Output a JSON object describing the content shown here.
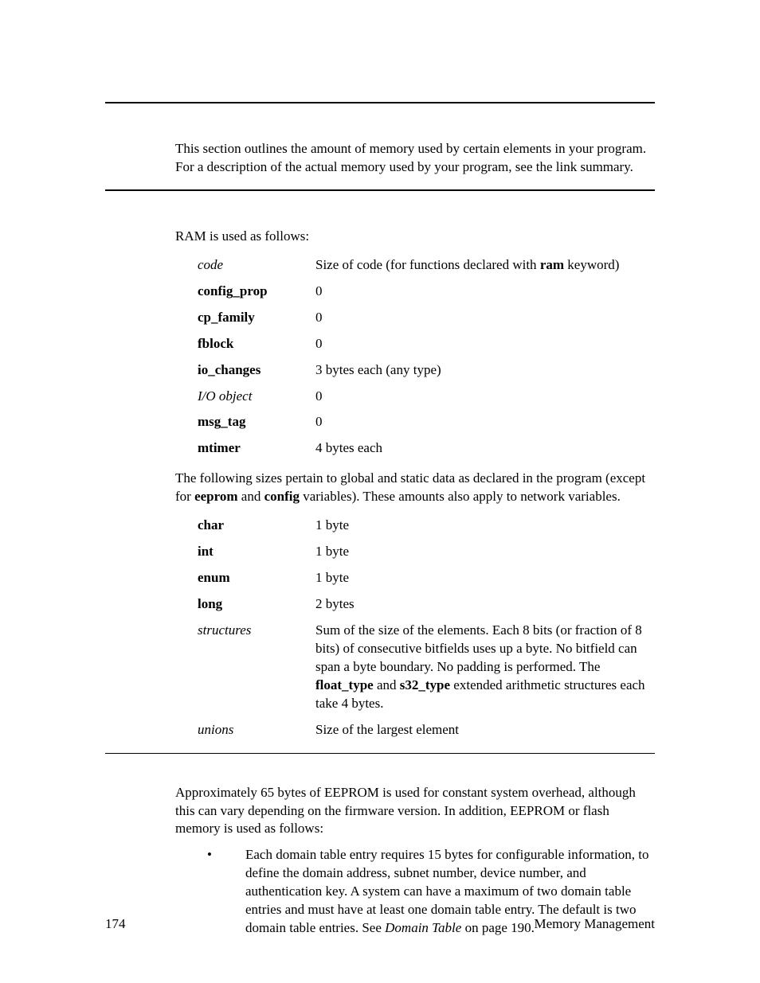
{
  "colors": {
    "text": "#000000",
    "background": "#ffffff",
    "rule": "#000000"
  },
  "typography": {
    "body_font": "Times New Roman / serif",
    "body_size_pt": 12
  },
  "intro": {
    "para": "This section outlines the amount of memory used by certain elements in your program.  For a description of the actual memory used by your program, see the link summary."
  },
  "ram": {
    "lead": "RAM is used as follows:",
    "rows": [
      {
        "term": "code",
        "term_style": "ital",
        "desc_pre": "Size of code (for functions declared with ",
        "desc_bold": "ram",
        "desc_post": " keyword)"
      },
      {
        "term": "config_prop",
        "term_style": "bold",
        "desc_pre": "0",
        "desc_bold": "",
        "desc_post": ""
      },
      {
        "term": "cp_family",
        "term_style": "bold",
        "desc_pre": "0",
        "desc_bold": "",
        "desc_post": ""
      },
      {
        "term": "fblock",
        "term_style": "bold",
        "desc_pre": "0",
        "desc_bold": "",
        "desc_post": ""
      },
      {
        "term": "io_changes",
        "term_style": "bold",
        "desc_pre": "3 bytes each (any type)",
        "desc_bold": "",
        "desc_post": ""
      },
      {
        "term": "I/O object",
        "term_style": "ital",
        "desc_pre": "0",
        "desc_bold": "",
        "desc_post": ""
      },
      {
        "term": "msg_tag",
        "term_style": "bold",
        "desc_pre": "0",
        "desc_bold": "",
        "desc_post": ""
      },
      {
        "term": "mtimer",
        "term_style": "bold",
        "desc_pre": "4 bytes each",
        "desc_bold": "",
        "desc_post": ""
      }
    ],
    "mid_para_pre": "The following sizes pertain to global and static data as declared in the program (except for ",
    "mid_para_b1": "eeprom",
    "mid_para_mid": " and ",
    "mid_para_b2": "config",
    "mid_para_post": " variables).  These amounts also apply to network variables.",
    "rows2": [
      {
        "term": "char",
        "term_style": "bold",
        "desc_pre": "1 byte",
        "desc_bold": "",
        "desc_post": ""
      },
      {
        "term": "int",
        "term_style": "bold",
        "desc_pre": "1 byte",
        "desc_bold": "",
        "desc_post": ""
      },
      {
        "term": "enum",
        "term_style": "bold",
        "desc_pre": "1 byte",
        "desc_bold": "",
        "desc_post": ""
      },
      {
        "term": "long",
        "term_style": "bold",
        "desc_pre": "2 bytes",
        "desc_bold": "",
        "desc_post": ""
      }
    ],
    "struct_row": {
      "term": "structures",
      "term_style": "ital",
      "desc_pre": "Sum of the size of the elements.  Each 8 bits (or fraction of 8 bits) of consecutive bitfields uses up a byte.  No bitfield can span a byte boundary.  No padding is performed.  The ",
      "b1": "float_type",
      "mid": " and ",
      "b2": "s32_type",
      "desc_post": " extended arithmetic structures each take 4 bytes."
    },
    "unions_row": {
      "term": "unions",
      "term_style": "ital",
      "desc": "Size of the largest element"
    }
  },
  "eeprom": {
    "para": "Approximately 65 bytes of EEPROM is used for constant system overhead, although this can vary depending on the firmware version.  In addition, EEPROM or flash memory is used as follows:",
    "bullet_pre": "Each domain table entry requires 15 bytes for configurable information, to define the domain address, subnet number, device number, and authentication key.  A system can have a maximum of two domain table entries and must have at least one domain table entry.  The default is two domain table entries.  See ",
    "bullet_ital": "Domain Table",
    "bullet_post": " on page 190."
  },
  "footer": {
    "page_no": "174",
    "section": "Memory Management"
  }
}
